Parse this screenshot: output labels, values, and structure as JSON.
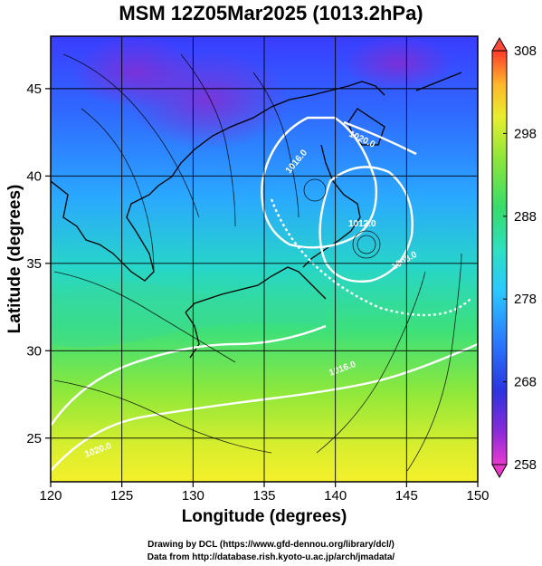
{
  "title": "MSM 12Z05Mar2025 (1013.2hPa)",
  "x_axis": {
    "label": "Longitude (degrees)",
    "ticks": [
      "120",
      "125",
      "130",
      "135",
      "140",
      "145",
      "150"
    ],
    "min": 120,
    "max": 150
  },
  "y_axis": {
    "label": "Latitude  (degrees)",
    "ticks": [
      "25",
      "30",
      "35",
      "40",
      "45"
    ],
    "min": 22.5,
    "max": 48
  },
  "colorbar": {
    "ticks": [
      "308",
      "298",
      "288",
      "278",
      "268",
      "258"
    ],
    "min": 258,
    "max": 308
  },
  "contour_labels": [
    "1020.0",
    "1016.0",
    "1012.0",
    "1008.0",
    "1016.0",
    "1020.0"
  ],
  "credits": {
    "line1": "Drawing by DCL (https://www.gfd-dennou.org/library/dcl/)",
    "line2": "Data from http://database.rish.kyoto-u.ac.jp/arch/jmadata/"
  },
  "colors": {
    "cold": "#2a3cff",
    "warm": "#ffe03a",
    "contour": "#ffffff"
  }
}
